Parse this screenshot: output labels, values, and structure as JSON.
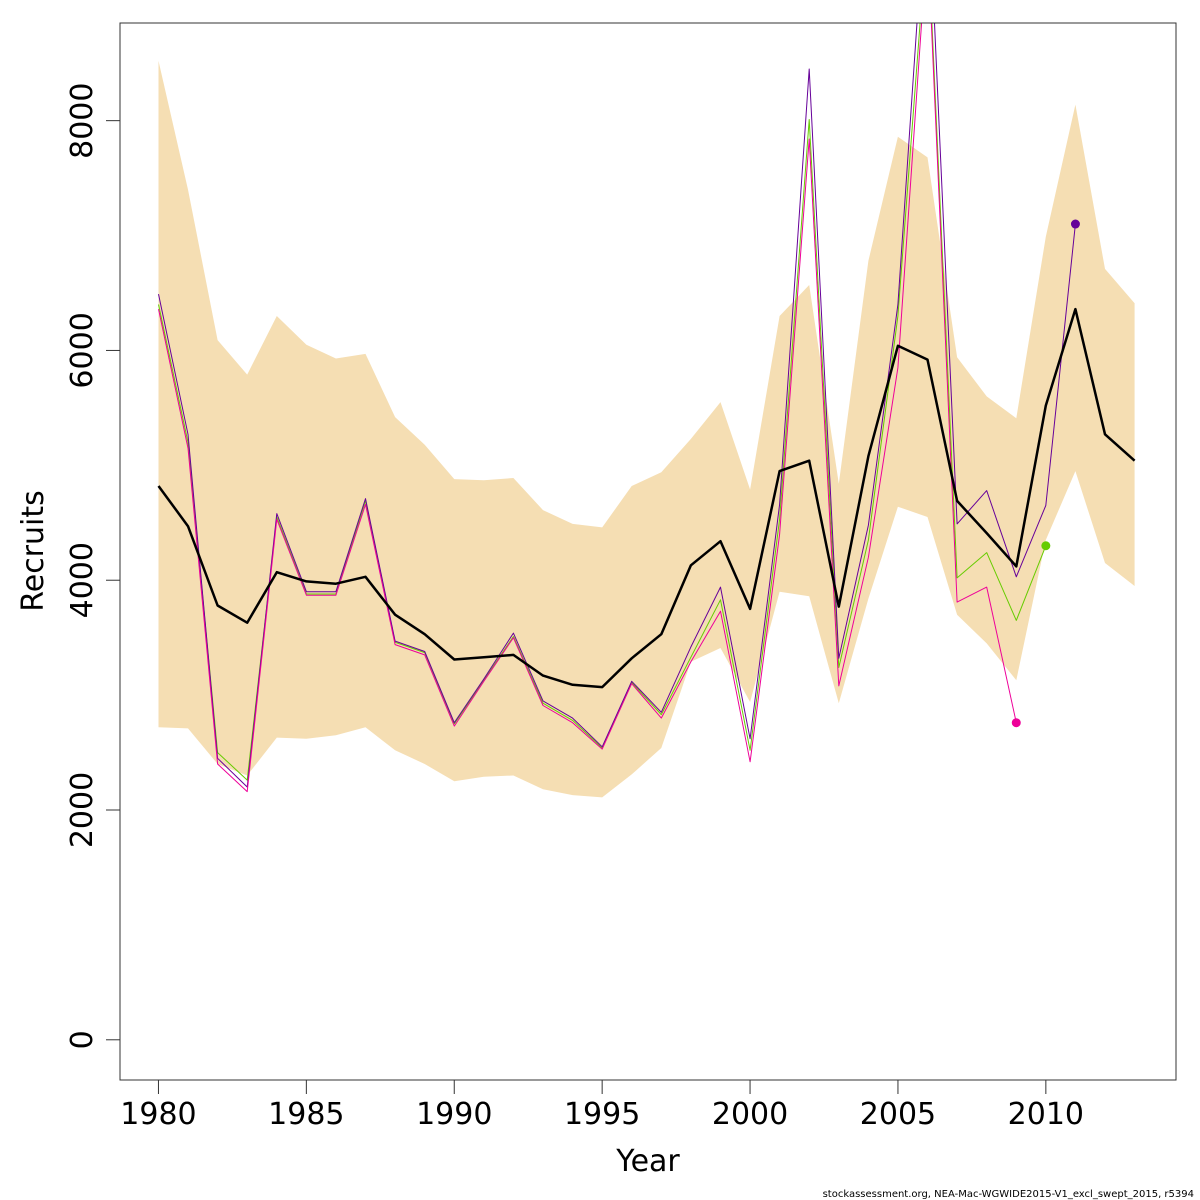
{
  "chart_data": {
    "type": "line",
    "xlabel": "Year",
    "ylabel": "Recruits",
    "xlim": [
      1978.7,
      2014.4
    ],
    "ylim": [
      -350,
      8850
    ],
    "x_ticks": [
      1980,
      1985,
      1990,
      1995,
      2000,
      2005,
      2010
    ],
    "y_ticks": [
      0,
      2000,
      4000,
      6000,
      8000
    ],
    "x_tick_labels": [
      "1980",
      "1985",
      "1990",
      "1995",
      "2000",
      "2005",
      "2010"
    ],
    "y_tick_labels": [
      "0",
      "2000",
      "4000",
      "6000",
      "8000"
    ],
    "grid": false,
    "legend": "none",
    "footer": "stockassessment.org, NEA-Mac-WGWIDE2015-V1_excl_swept_2015, r5394",
    "colors": {
      "band": "#f5deb3",
      "estimate": "#000000",
      "retro_green": "#66cc00",
      "retro_purple": "#660099",
      "retro_magenta": "#ee0099"
    },
    "x": [
      1980,
      1981,
      1982,
      1983,
      1984,
      1985,
      1986,
      1987,
      1988,
      1989,
      1990,
      1991,
      1992,
      1993,
      1994,
      1995,
      1996,
      1997,
      1998,
      1999,
      2000,
      2001,
      2002,
      2003,
      2004,
      2005,
      2006,
      2007,
      2008,
      2009,
      2010,
      2011,
      2012,
      2013
    ],
    "confidence_band": {
      "upper": [
        8520,
        7400,
        6090,
        5790,
        6300,
        6050,
        5930,
        5970,
        5420,
        5180,
        4880,
        4870,
        4890,
        4610,
        4490,
        4460,
        4820,
        4940,
        5230,
        5550,
        4790,
        6300,
        6570,
        4840,
        6780,
        7860,
        7680,
        5940,
        5600,
        5410,
        6990,
        8140,
        6710,
        6410
      ],
      "lower": [
        2720,
        2710,
        2400,
        2300,
        2630,
        2620,
        2650,
        2720,
        2520,
        2400,
        2250,
        2290,
        2300,
        2180,
        2130,
        2110,
        2310,
        2540,
        3290,
        3410,
        2940,
        3900,
        3860,
        2930,
        3840,
        4640,
        4550,
        3700,
        3450,
        3130,
        4350,
        4950,
        4150,
        3950
      ]
    },
    "series": [
      {
        "values": [
          4820,
          4470,
          3780,
          3630,
          4070,
          3990,
          3970,
          4030,
          3700,
          3530,
          3310,
          3330,
          3350,
          3170,
          3090,
          3070,
          3320,
          3530,
          4130,
          4340,
          3750,
          4950,
          5040,
          3770,
          5080,
          6040,
          5920,
          4690,
          4410,
          4120,
          5520,
          6360,
          5270,
          5040
        ]
      },
      {
        "values": [
          6400,
          5200,
          2500,
          2260,
          4550,
          3880,
          3880,
          4690,
          3460,
          3370,
          2750,
          3130,
          3510,
          2930,
          2780,
          2540,
          3110,
          2830,
          3330,
          3830,
          2520,
          4530,
          8010,
          3240,
          4350,
          6300,
          9700,
          4020,
          4240,
          3650,
          4300,
          null,
          null,
          null
        ]
      },
      {
        "values": [
          6490,
          5270,
          2450,
          2200,
          4580,
          3900,
          3900,
          4710,
          3470,
          3380,
          2760,
          3140,
          3540,
          2950,
          2800,
          2550,
          3120,
          2850,
          3420,
          3940,
          2620,
          4660,
          8450,
          3320,
          4480,
          6400,
          10200,
          4490,
          4780,
          4030,
          4650,
          7100,
          null,
          null
        ]
      },
      {
        "values": [
          6360,
          5150,
          2400,
          2160,
          4530,
          3870,
          3870,
          4660,
          3440,
          3350,
          2730,
          3120,
          3500,
          2910,
          2760,
          2530,
          3100,
          2800,
          3290,
          3730,
          2420,
          4400,
          7840,
          3080,
          4200,
          5850,
          9600,
          3810,
          3940,
          2760,
          null,
          null,
          null,
          null
        ]
      }
    ],
    "terminal_points": [
      {
        "x": 2009,
        "y": 2760,
        "color_key": "retro_magenta"
      },
      {
        "x": 2010,
        "y": 4300,
        "color_key": "retro_green"
      },
      {
        "x": 2011,
        "y": 7100,
        "color_key": "retro_purple"
      }
    ]
  }
}
